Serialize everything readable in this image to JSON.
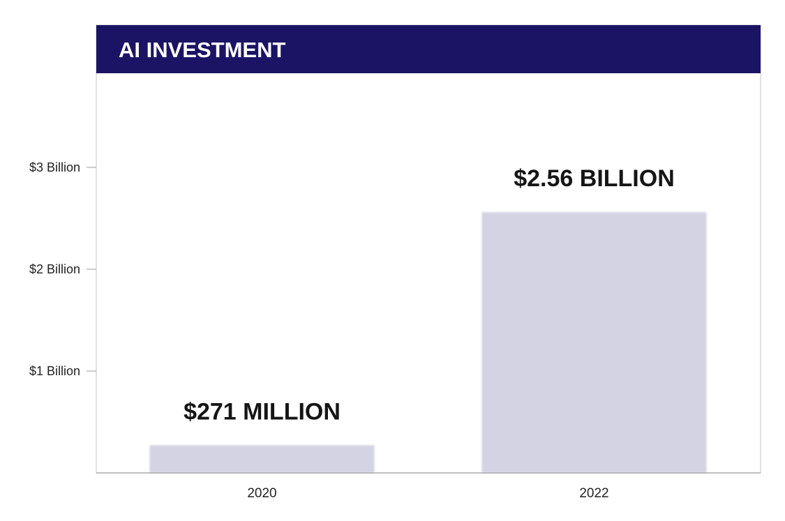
{
  "chart_data": {
    "type": "bar",
    "title": "AI INVESTMENT",
    "categories": [
      "2020",
      "2022"
    ],
    "values": [
      271000000,
      2560000000
    ],
    "data_labels": [
      "$271 MILLION",
      "$2.56 BILLION"
    ],
    "yticks": [
      {
        "value": 1000000000,
        "label": "$1 Billion"
      },
      {
        "value": 2000000000,
        "label": "$2 Billion"
      },
      {
        "value": 3000000000,
        "label": "$3 Billion"
      }
    ],
    "ylim": [
      0,
      3900000000
    ],
    "xlabel": "",
    "ylabel": "",
    "grid": false,
    "legend": "none",
    "colors": {
      "title_background": "#1b1464",
      "bar": "#d3d3e4",
      "axis": "#9a9a9a",
      "frame": "#c4c4c4"
    }
  }
}
